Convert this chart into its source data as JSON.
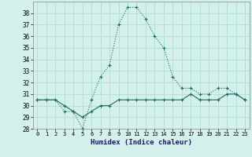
{
  "xlabel": "Humidex (Indice chaleur)",
  "hours": [
    0,
    1,
    2,
    3,
    4,
    5,
    6,
    7,
    8,
    9,
    10,
    11,
    12,
    13,
    14,
    15,
    16,
    17,
    18,
    19,
    20,
    21,
    22,
    23
  ],
  "humidex_dotted": [
    30.5,
    30.5,
    30.5,
    29.5,
    29.5,
    28.0,
    30.5,
    32.5,
    33.5,
    37.0,
    38.5,
    38.5,
    37.5,
    36.0,
    35.0,
    32.5,
    31.5,
    31.5,
    31.0,
    31.0,
    31.5,
    31.5,
    31.0,
    30.5
  ],
  "humidex_solid": [
    30.5,
    30.5,
    30.5,
    30.0,
    29.5,
    29.0,
    29.5,
    30.0,
    30.0,
    30.5,
    30.5,
    30.5,
    30.5,
    30.5,
    30.5,
    30.5,
    30.5,
    31.0,
    30.5,
    30.5,
    30.5,
    31.0,
    31.0,
    30.5
  ],
  "ylim": [
    28,
    39
  ],
  "yticks": [
    28,
    29,
    30,
    31,
    32,
    33,
    34,
    35,
    36,
    37,
    38
  ],
  "line_color": "#1a6b5a",
  "bg_color": "#d4f0ec",
  "grid_color": "#aad8d3"
}
